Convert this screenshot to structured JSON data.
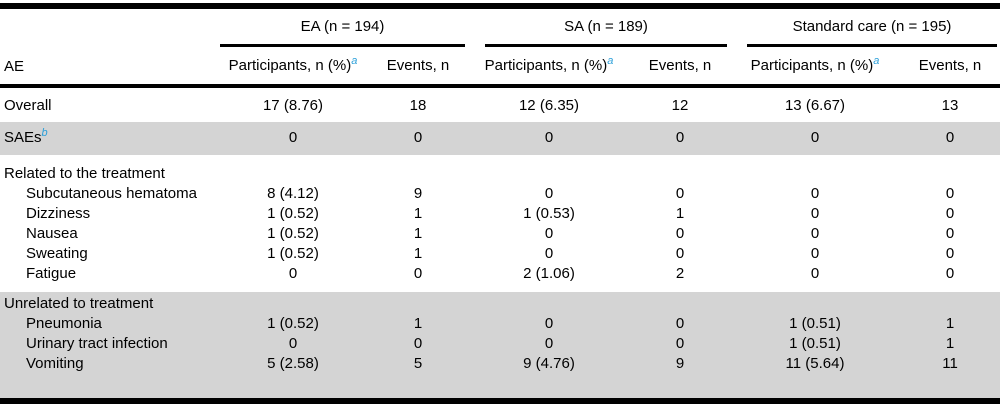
{
  "table": {
    "row_header_label": "AE",
    "groups": [
      {
        "label": "EA (n = 194)",
        "participants_header": "Participants, n (%)",
        "participants_sup": "a",
        "events_header": "Events, n"
      },
      {
        "label": "SA (n = 189)",
        "participants_header": "Participants, n (%)",
        "participants_sup": "a",
        "events_header": "Events, n"
      },
      {
        "label": "Standard care (n = 195)",
        "participants_header": "Participants, n (%)",
        "participants_sup": "a",
        "events_header": "Events, n"
      }
    ],
    "sections": [
      {
        "shaded": false,
        "rows": [
          {
            "label": "Overall",
            "indent": false,
            "sup": "",
            "values": [
              "17 (8.76)",
              "18",
              "12 (6.35)",
              "12",
              "13 (6.67)",
              "13"
            ]
          }
        ]
      },
      {
        "shaded": true,
        "rows": [
          {
            "label": "SAEs",
            "indent": false,
            "sup": "b",
            "values": [
              "0",
              "0",
              "0",
              "0",
              "0",
              "0"
            ]
          }
        ]
      },
      {
        "shaded": false,
        "rows": [
          {
            "label": "Related to the treatment",
            "indent": false,
            "sup": "",
            "values": [
              "",
              "",
              "",
              "",
              "",
              ""
            ]
          },
          {
            "label": "Subcutaneous hematoma",
            "indent": true,
            "sup": "",
            "values": [
              "8 (4.12)",
              "9",
              "0",
              "0",
              "0",
              "0"
            ]
          },
          {
            "label": "Dizziness",
            "indent": true,
            "sup": "",
            "values": [
              "1 (0.52)",
              "1",
              "1 (0.53)",
              "1",
              "0",
              "0"
            ]
          },
          {
            "label": "Nausea",
            "indent": true,
            "sup": "",
            "values": [
              "1 (0.52)",
              "1",
              "0",
              "0",
              "0",
              "0"
            ]
          },
          {
            "label": "Sweating",
            "indent": true,
            "sup": "",
            "values": [
              "1 (0.52)",
              "1",
              "0",
              "0",
              "0",
              "0"
            ]
          },
          {
            "label": "Fatigue",
            "indent": true,
            "sup": "",
            "values": [
              "0",
              "0",
              "2 (1.06)",
              "2",
              "0",
              "0"
            ]
          }
        ]
      },
      {
        "shaded": true,
        "rows": [
          {
            "label": "Unrelated to treatment",
            "indent": false,
            "sup": "",
            "values": [
              "",
              "",
              "",
              "",
              "",
              ""
            ]
          },
          {
            "label": "Pneumonia",
            "indent": true,
            "sup": "",
            "values": [
              "1 (0.52)",
              "1",
              "0",
              "0",
              "1 (0.51)",
              "1"
            ]
          },
          {
            "label": "Urinary tract infection",
            "indent": true,
            "sup": "",
            "values": [
              "0",
              "0",
              "0",
              "0",
              "1 (0.51)",
              "1"
            ]
          },
          {
            "label": "Vomiting",
            "indent": true,
            "sup": "",
            "values": [
              "5 (2.58)",
              "5",
              "9 (4.76)",
              "9",
              "11 (5.64)",
              "11"
            ]
          }
        ]
      }
    ],
    "colors": {
      "shaded_row_bg": "#d4d4d4",
      "footnote_marker_blue": "#2b9fd9",
      "rule_black": "#000000"
    }
  }
}
